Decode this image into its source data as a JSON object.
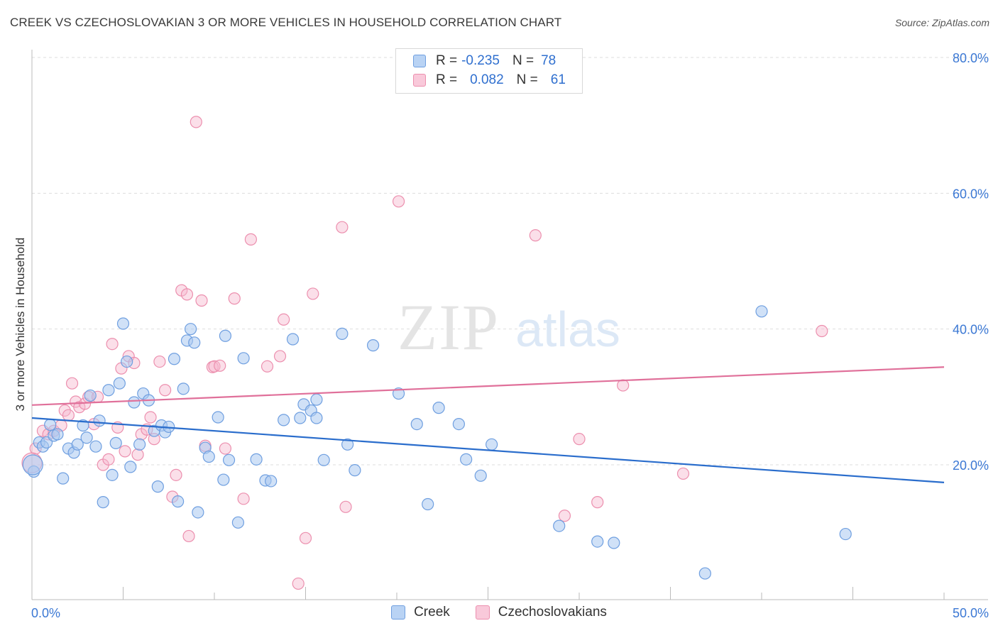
{
  "header": {
    "title": "CREEK VS CZECHOSLOVAKIAN 3 OR MORE VEHICLES IN HOUSEHOLD CORRELATION CHART",
    "source": "Source: ZipAtlas.com"
  },
  "watermark": {
    "zip": "ZIP",
    "atlas": "atlas"
  },
  "legend": {
    "rows": [
      {
        "r_label": "R =",
        "r_value": "-0.235",
        "n_label": "N =",
        "n_value": "78"
      },
      {
        "r_label": "R =",
        "r_value": "0.082",
        "n_label": "N =",
        "n_value": "61"
      }
    ]
  },
  "colors": {
    "creek_fill": "#a9c8f0",
    "creek_stroke": "#6f9fe0",
    "creek_line": "#2a6dcc",
    "czech_fill": "#f7b9cf",
    "czech_stroke": "#ec8fae",
    "czech_line": "#e0709a",
    "axis_text": "#3b78d4",
    "grid": "#dddddd"
  },
  "chart_data": {
    "type": "scatter",
    "title": "CREEK VS CZECHOSLOVAKIAN 3 OR MORE VEHICLES IN HOUSEHOLD CORRELATION CHART",
    "ylabel": "3 or more Vehicles in Household",
    "xlabel": "",
    "xlim": [
      0,
      50
    ],
    "ylim": [
      0,
      83
    ],
    "x_tick_labels": [
      {
        "value": 0,
        "label": "0.0%"
      },
      {
        "value": 50,
        "label": "50.0%"
      }
    ],
    "y_tick_labels": [
      {
        "value": 20,
        "label": "20.0%"
      },
      {
        "value": 40,
        "label": "40.0%"
      },
      {
        "value": 60,
        "label": "60.0%"
      },
      {
        "value": 80,
        "label": "80.0%"
      }
    ],
    "grid": true,
    "legend_position": "bottom",
    "series": [
      {
        "name": "Creek",
        "r": -0.235,
        "n": 78,
        "trend": {
          "x": [
            0,
            50
          ],
          "y": [
            26.9,
            17.4
          ]
        },
        "points": [
          [
            0.1,
            19.0
          ],
          [
            0.4,
            23.3
          ],
          [
            0.6,
            22.7
          ],
          [
            0.8,
            23.3
          ],
          [
            1.0,
            25.9
          ],
          [
            1.2,
            24.3
          ],
          [
            1.4,
            24.5
          ],
          [
            1.7,
            18.0
          ],
          [
            2.0,
            22.4
          ],
          [
            2.3,
            21.8
          ],
          [
            2.5,
            23.0
          ],
          [
            2.8,
            25.8
          ],
          [
            3.0,
            24.0
          ],
          [
            3.2,
            30.2
          ],
          [
            3.5,
            22.7
          ],
          [
            3.7,
            26.5
          ],
          [
            3.9,
            14.5
          ],
          [
            4.2,
            31.0
          ],
          [
            4.4,
            18.5
          ],
          [
            4.6,
            23.2
          ],
          [
            4.8,
            32.0
          ],
          [
            5.0,
            40.8
          ],
          [
            5.2,
            35.2
          ],
          [
            5.4,
            19.7
          ],
          [
            5.6,
            29.2
          ],
          [
            5.9,
            23.0
          ],
          [
            6.1,
            30.5
          ],
          [
            6.4,
            29.5
          ],
          [
            6.7,
            25.0
          ],
          [
            6.9,
            16.8
          ],
          [
            7.1,
            25.8
          ],
          [
            7.3,
            24.8
          ],
          [
            7.5,
            25.6
          ],
          [
            7.8,
            35.6
          ],
          [
            8.0,
            14.6
          ],
          [
            8.3,
            31.2
          ],
          [
            8.5,
            38.3
          ],
          [
            8.7,
            40.0
          ],
          [
            8.9,
            38.0
          ],
          [
            9.1,
            13.0
          ],
          [
            9.5,
            22.5
          ],
          [
            9.7,
            21.2
          ],
          [
            10.2,
            27.0
          ],
          [
            10.5,
            17.8
          ],
          [
            10.6,
            39.0
          ],
          [
            10.8,
            20.7
          ],
          [
            11.3,
            11.5
          ],
          [
            11.6,
            35.7
          ],
          [
            12.3,
            20.8
          ],
          [
            12.8,
            17.7
          ],
          [
            13.1,
            17.6
          ],
          [
            13.8,
            26.6
          ],
          [
            14.3,
            38.5
          ],
          [
            14.7,
            26.9
          ],
          [
            14.9,
            28.9
          ],
          [
            15.3,
            28.0
          ],
          [
            15.6,
            29.6
          ],
          [
            15.6,
            26.9
          ],
          [
            16.0,
            20.7
          ],
          [
            17.0,
            39.3
          ],
          [
            17.3,
            23.0
          ],
          [
            17.7,
            19.2
          ],
          [
            18.7,
            37.6
          ],
          [
            20.1,
            30.5
          ],
          [
            21.1,
            26.0
          ],
          [
            21.7,
            14.2
          ],
          [
            22.3,
            28.4
          ],
          [
            23.4,
            26.0
          ],
          [
            23.8,
            20.8
          ],
          [
            24.6,
            18.4
          ],
          [
            25.2,
            23.0
          ],
          [
            28.9,
            11.0
          ],
          [
            31.0,
            8.7
          ],
          [
            31.9,
            8.5
          ],
          [
            36.9,
            4.0
          ],
          [
            40.0,
            42.6
          ],
          [
            44.6,
            9.8
          ],
          [
            0.05,
            20.0
          ]
        ]
      },
      {
        "name": "Czechoslovakians",
        "r": 0.082,
        "n": 61,
        "trend": {
          "x": [
            0,
            50
          ],
          "y": [
            28.8,
            34.4
          ]
        },
        "points": [
          [
            0.2,
            22.4
          ],
          [
            0.6,
            25.0
          ],
          [
            0.9,
            24.5
          ],
          [
            1.2,
            25.0
          ],
          [
            1.6,
            25.8
          ],
          [
            1.8,
            28.0
          ],
          [
            2.0,
            27.3
          ],
          [
            2.2,
            32.0
          ],
          [
            2.4,
            29.3
          ],
          [
            2.6,
            28.5
          ],
          [
            2.9,
            29.0
          ],
          [
            3.1,
            30.0
          ],
          [
            3.4,
            26.0
          ],
          [
            3.6,
            30.0
          ],
          [
            3.9,
            20.0
          ],
          [
            4.2,
            20.8
          ],
          [
            4.4,
            37.8
          ],
          [
            4.7,
            25.5
          ],
          [
            4.9,
            34.2
          ],
          [
            5.1,
            22.0
          ],
          [
            5.3,
            36.0
          ],
          [
            5.6,
            35.0
          ],
          [
            5.8,
            21.5
          ],
          [
            6.0,
            24.5
          ],
          [
            6.3,
            25.2
          ],
          [
            6.5,
            27.0
          ],
          [
            6.7,
            23.8
          ],
          [
            7.0,
            35.2
          ],
          [
            7.3,
            31.0
          ],
          [
            7.7,
            15.3
          ],
          [
            7.9,
            18.5
          ],
          [
            8.2,
            45.7
          ],
          [
            8.5,
            45.1
          ],
          [
            8.6,
            9.5
          ],
          [
            9.0,
            70.5
          ],
          [
            9.3,
            44.2
          ],
          [
            9.5,
            22.8
          ],
          [
            9.9,
            34.4
          ],
          [
            10.0,
            34.5
          ],
          [
            10.3,
            34.6
          ],
          [
            10.6,
            22.4
          ],
          [
            11.1,
            44.5
          ],
          [
            11.6,
            15.0
          ],
          [
            12.0,
            53.2
          ],
          [
            12.9,
            34.5
          ],
          [
            13.8,
            41.4
          ],
          [
            13.6,
            36.0
          ],
          [
            14.6,
            2.5
          ],
          [
            15.0,
            9.2
          ],
          [
            15.4,
            45.2
          ],
          [
            17.0,
            55.0
          ],
          [
            17.2,
            13.8
          ],
          [
            20.1,
            58.8
          ],
          [
            27.6,
            53.8
          ],
          [
            29.2,
            12.5
          ],
          [
            30.0,
            23.8
          ],
          [
            31.0,
            14.5
          ],
          [
            32.4,
            31.7
          ],
          [
            35.7,
            18.7
          ],
          [
            43.3,
            39.7
          ],
          [
            0.0,
            20.3
          ]
        ]
      }
    ]
  }
}
